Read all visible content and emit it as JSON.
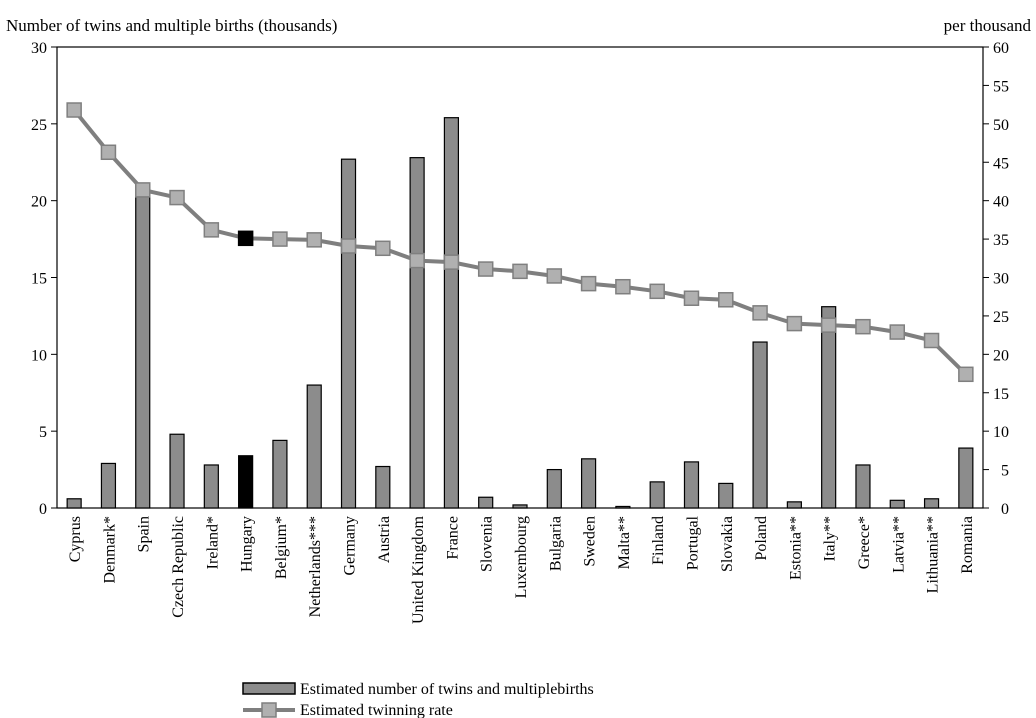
{
  "chart_data": {
    "type": "bar",
    "title": "",
    "ylabel": "Number of twins and multiple births (thousands)",
    "y2label": "per thousand",
    "ylim": [
      0,
      30
    ],
    "y2lim": [
      0,
      60
    ],
    "yticks": [
      "0",
      "5",
      "10",
      "15",
      "20",
      "25",
      "30"
    ],
    "y2ticks": [
      "0",
      "5",
      "10",
      "15",
      "20",
      "25",
      "30",
      "35",
      "40",
      "45",
      "50",
      "55",
      "60"
    ],
    "grid": false,
    "legend_position": "bottom",
    "colors": {
      "bar": "#8c8c8c",
      "bar_highlight": "#000000",
      "line": "#7f7f7f",
      "marker": "#b0b0b0",
      "marker_highlight": "#000000"
    },
    "highlight_category": "Hungary",
    "categories": [
      "Cyprus",
      "Denmark*",
      "Spain",
      "Czech Republic",
      "Ireland*",
      "Hungary",
      "Belgium*",
      "Netherlands***",
      "Germany",
      "Austria",
      "United Kingdom",
      "France",
      "Slovenia",
      "Luxembourg",
      "Bulgaria",
      "Sweden",
      "Malta**",
      "Finland",
      "Portugal",
      "Slovakia",
      "Poland",
      "Estonia**",
      "Italy**",
      "Greece*",
      "Latvia**",
      "Lithuania**",
      "Romania"
    ],
    "series": [
      {
        "name": "Estimated number of twins and multiplebirths",
        "type": "bar",
        "axis": "left",
        "values": [
          0.6,
          2.9,
          20.9,
          4.8,
          2.8,
          3.4,
          4.4,
          8.0,
          22.7,
          2.7,
          22.8,
          25.4,
          0.7,
          0.2,
          2.5,
          3.2,
          0.1,
          1.7,
          3.0,
          1.6,
          10.8,
          0.4,
          13.1,
          2.8,
          0.5,
          0.6,
          3.9
        ]
      },
      {
        "name": "Estimated twinning rate",
        "type": "line",
        "axis": "right",
        "values": [
          51.8,
          46.3,
          41.4,
          40.4,
          36.2,
          35.1,
          35.0,
          34.9,
          34.1,
          33.8,
          32.2,
          32.0,
          31.1,
          30.8,
          30.2,
          29.2,
          28.8,
          28.2,
          27.3,
          27.1,
          25.4,
          24.0,
          23.8,
          23.6,
          22.9,
          21.8,
          17.4
        ]
      }
    ]
  }
}
